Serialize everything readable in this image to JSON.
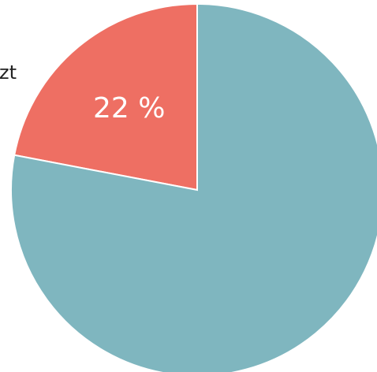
{
  "chart_data": {
    "type": "pie",
    "start_angle": "12 o'clock",
    "direction": "counterclockwise",
    "slices": [
      {
        "value": 22,
        "label": "22 %",
        "color": "#ee6f63"
      },
      {
        "value": 78,
        "label": "",
        "color": "#7fb6bf"
      }
    ]
  },
  "cropped_text": "zt",
  "slice_border_color": "#ffffff"
}
